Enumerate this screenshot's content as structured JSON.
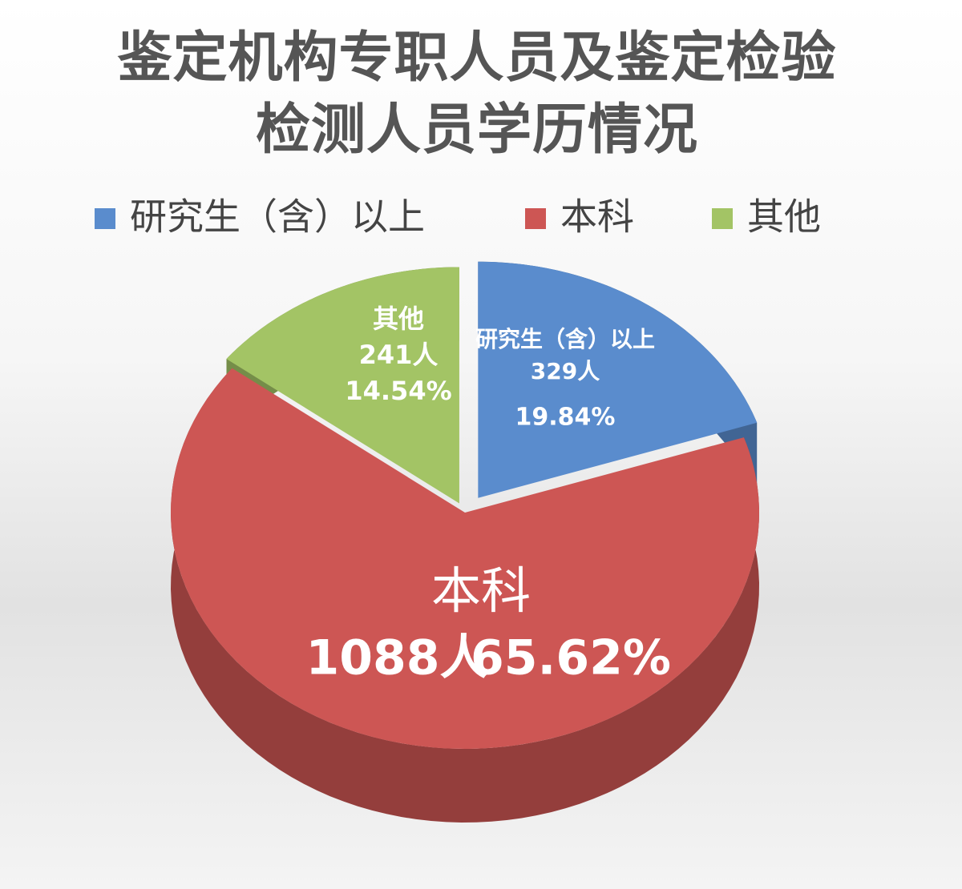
{
  "chart_data": {
    "type": "pie3d",
    "title": "鉴定机构专职人员及鉴定检验检测人员学历情况",
    "categories": [
      "研究生（含）以上",
      "本科",
      "其他"
    ],
    "values": [
      329,
      1088,
      241
    ],
    "value_labels": [
      "329人",
      "1088人",
      "241人"
    ],
    "percent": [
      19.84,
      65.62,
      14.54
    ],
    "percent_labels": [
      "19.84%",
      "65.62%",
      "14.54%"
    ],
    "colors": [
      "#5a8ccd",
      "#cd5654",
      "#a3c465"
    ],
    "legend": "top"
  }
}
